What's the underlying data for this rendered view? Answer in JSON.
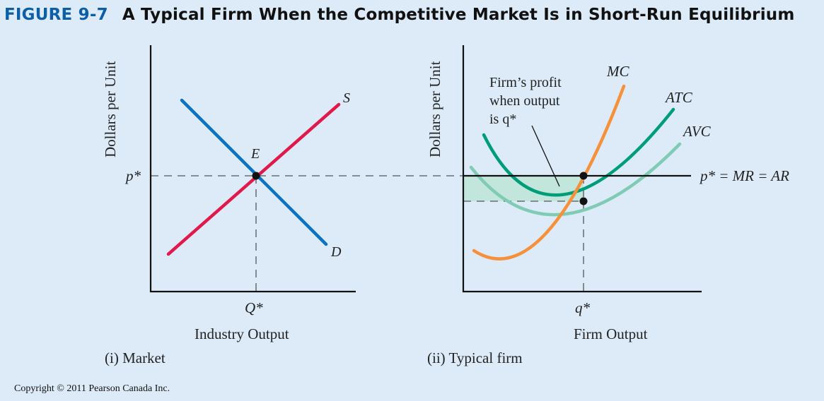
{
  "figure": {
    "number": "FIGURE 9-7",
    "title": "A Typical Firm When the Competitive Market Is in Short-Run Equilibrium"
  },
  "colors": {
    "background": "#dcebf7",
    "title_number": "#0a5fa8",
    "demand": "#0b72c4",
    "supply": "#e1194a",
    "mc": "#f4913a",
    "atc": "#009e78",
    "avc": "#80cbb4",
    "profit_area": "#c2e6dc"
  },
  "market": {
    "ylabel": "Dollars per Unit",
    "xlabel": "Industry Output",
    "caption": "(i) Market",
    "price_label": "p*",
    "quantity_label": "Q*",
    "equilibrium_label": "E",
    "supply_label": "S",
    "demand_label": "D"
  },
  "firm": {
    "ylabel": "Dollars per Unit",
    "xlabel": "Firm Output",
    "caption": "(ii) Typical firm",
    "quantity_label": "q*",
    "price_line_label": "p* = MR = AR",
    "mc_label": "MC",
    "atc_label": "ATC",
    "avc_label": "AVC",
    "profit_annotation": [
      "Firm’s profit",
      "when output",
      "is q*"
    ]
  },
  "copyright": "Copyright © 2011 Pearson Canada Inc."
}
